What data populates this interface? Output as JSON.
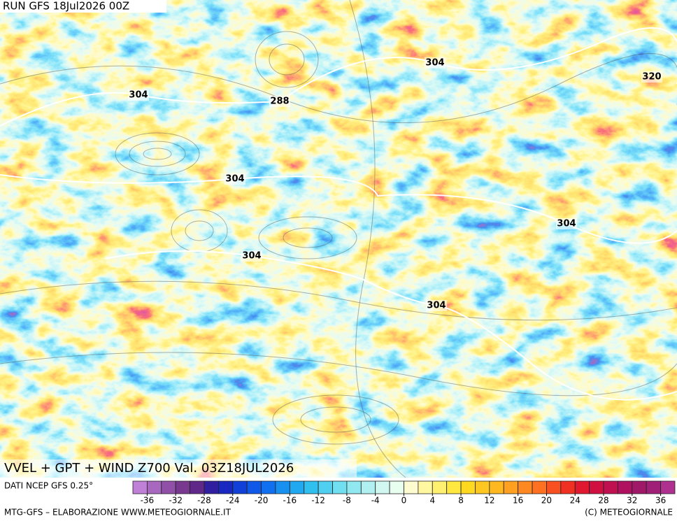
{
  "header": {
    "run": "RUN GFS 18Jul2026 00Z"
  },
  "map": {
    "contour_labels": [
      "304",
      "288",
      "304",
      "304",
      "304",
      "320",
      "304",
      "304"
    ]
  },
  "title": "VVEL + GPT + WIND Z700 Val. 03Z18JUL2026",
  "source": "DATI NCEP GFS 0.25°",
  "colorbar": {
    "range": [
      -38,
      38
    ],
    "ticks": [
      -36,
      -32,
      -28,
      -24,
      -20,
      -16,
      -12,
      -8,
      -4,
      0,
      4,
      8,
      12,
      16,
      20,
      24,
      28,
      32,
      36
    ],
    "colors": [
      "#c080d8",
      "#a868c0",
      "#9050a8",
      "#783890",
      "#602888",
      "#3020a0",
      "#1828c0",
      "#1040d8",
      "#1058e8",
      "#1070f0",
      "#1890f0",
      "#20a8f0",
      "#30c0f0",
      "#50d0f0",
      "#70e0f0",
      "#90e8f0",
      "#b0f0f0",
      "#d0f8f0",
      "#e8fff0",
      "#fffbd0",
      "#fff8a0",
      "#fff070",
      "#ffe840",
      "#ffd820",
      "#ffc820",
      "#ffb820",
      "#ffa020",
      "#ff8820",
      "#ff7020",
      "#f85020",
      "#f03020",
      "#e01830",
      "#d01040",
      "#c01050",
      "#b01060",
      "#a01868",
      "#a02078",
      "#b03090"
    ]
  },
  "footer": {
    "left": "MTG-GFS – ELABORAZIONE WWW.METEOGIORNALE.IT",
    "right": "(C) METEOGIORNALE"
  }
}
